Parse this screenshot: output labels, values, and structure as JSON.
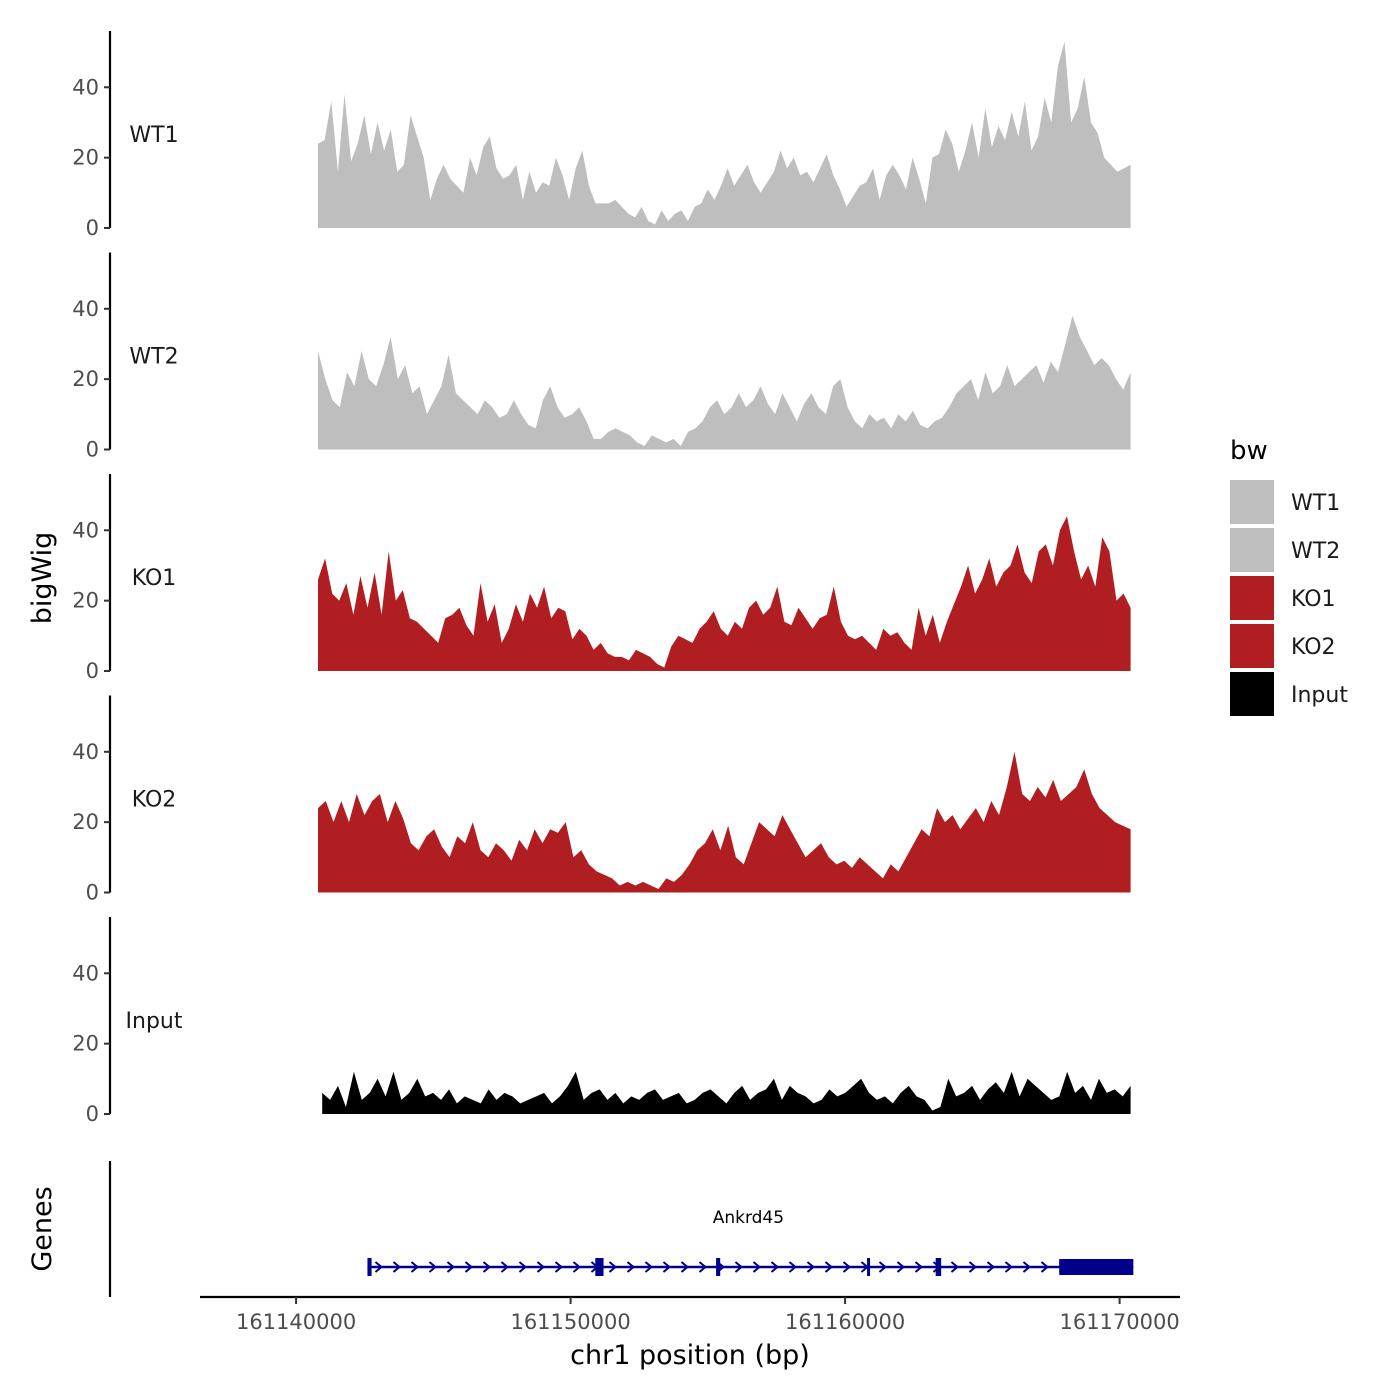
{
  "chart_data": {
    "type": "area",
    "x_axis": {
      "title": "chr1 position (bp)",
      "range": [
        161136500,
        161172200
      ],
      "ticks": [
        161140000,
        161150000,
        161160000,
        161170000
      ],
      "tick_labels": [
        "161140000",
        "161150000",
        "161160000",
        "161170000"
      ]
    },
    "y_axis": {
      "title": "bigWig",
      "range": [
        0,
        56
      ],
      "ticks": [
        0,
        20,
        40
      ],
      "tick_labels": [
        "0",
        "20",
        "40"
      ]
    },
    "tracks": [
      {
        "name": "WT1",
        "color": "#bebebe",
        "x_start": 161140800,
        "x_end": 161170400,
        "values": [
          24,
          25,
          36,
          16,
          38,
          19,
          24,
          32,
          21,
          30,
          22,
          28,
          16,
          18,
          32,
          26,
          20,
          8,
          14,
          18,
          14,
          12,
          10,
          20,
          15,
          23,
          26,
          17,
          14,
          15,
          18,
          8,
          16,
          10,
          13,
          12,
          20,
          15,
          8,
          17,
          22,
          12,
          7,
          7,
          7,
          8,
          6,
          4,
          3,
          6,
          2,
          1,
          5,
          2,
          4,
          5,
          2,
          6,
          7,
          11,
          8,
          12,
          17,
          12,
          15,
          18,
          13,
          10,
          13,
          16,
          22,
          17,
          20,
          15,
          16,
          13,
          17,
          21,
          15,
          11,
          6,
          9,
          12,
          13,
          17,
          8,
          15,
          18,
          15,
          11,
          20,
          14,
          7,
          20,
          21,
          28,
          24,
          16,
          22,
          30,
          20,
          34,
          23,
          29,
          25,
          33,
          26,
          36,
          22,
          26,
          37,
          30,
          46,
          53,
          30,
          34,
          43,
          30,
          27,
          20,
          18,
          16,
          17,
          18
        ]
      },
      {
        "name": "WT2",
        "color": "#bebebe",
        "x_start": 161140800,
        "x_end": 161170400,
        "values": [
          28,
          20,
          14,
          12,
          22,
          18,
          28,
          20,
          18,
          24,
          32,
          20,
          24,
          16,
          18,
          10,
          14,
          18,
          27,
          16,
          14,
          12,
          10,
          14,
          12,
          9,
          10,
          14,
          10,
          7,
          6,
          14,
          18,
          12,
          9,
          10,
          12,
          8,
          3,
          3,
          5,
          6,
          5,
          4,
          2,
          1,
          4,
          3,
          2,
          3,
          1,
          5,
          6,
          8,
          12,
          14,
          10,
          12,
          16,
          12,
          14,
          18,
          13,
          10,
          16,
          12,
          8,
          13,
          16,
          12,
          10,
          18,
          20,
          12,
          8,
          6,
          10,
          8,
          9,
          6,
          10,
          8,
          11,
          7,
          6,
          8,
          9,
          12,
          16,
          18,
          20,
          14,
          22,
          16,
          18,
          24,
          18,
          20,
          22,
          24,
          19,
          25,
          22,
          30,
          38,
          32,
          28,
          24,
          26,
          24,
          20,
          17,
          22
        ]
      },
      {
        "name": "KO1",
        "color": "#b11e21",
        "x_start": 161140800,
        "x_end": 161170400,
        "values": [
          26,
          32,
          22,
          20,
          25,
          16,
          27,
          18,
          28,
          16,
          34,
          20,
          23,
          15,
          14,
          12,
          10,
          8,
          15,
          16,
          18,
          13,
          10,
          25,
          14,
          19,
          8,
          12,
          19,
          14,
          22,
          18,
          24,
          15,
          18,
          17,
          9,
          12,
          10,
          6,
          8,
          5,
          4,
          4,
          3,
          6,
          5,
          4,
          2,
          1,
          7,
          10,
          9,
          8,
          12,
          14,
          17,
          12,
          10,
          14,
          12,
          18,
          20,
          16,
          18,
          24,
          14,
          13,
          18,
          15,
          12,
          15,
          16,
          24,
          14,
          10,
          9,
          10,
          8,
          6,
          12,
          10,
          11,
          8,
          6,
          18,
          10,
          16,
          8,
          14,
          19,
          24,
          30,
          22,
          26,
          32,
          24,
          28,
          30,
          36,
          28,
          25,
          34,
          36,
          30,
          40,
          44,
          34,
          26,
          30,
          24,
          38,
          34,
          20,
          22,
          18
        ]
      },
      {
        "name": "KO2",
        "color": "#b11e21",
        "x_start": 161140800,
        "x_end": 161170400,
        "values": [
          24,
          26,
          20,
          26,
          20,
          28,
          22,
          26,
          28,
          20,
          26,
          21,
          14,
          12,
          16,
          18,
          13,
          10,
          16,
          14,
          20,
          12,
          10,
          14,
          12,
          9,
          15,
          12,
          18,
          14,
          18,
          17,
          20,
          10,
          12,
          8,
          6,
          5,
          4,
          2,
          3,
          2,
          3,
          2,
          1,
          4,
          3,
          5,
          8,
          12,
          14,
          18,
          12,
          19,
          10,
          8,
          14,
          20,
          18,
          16,
          22,
          18,
          14,
          10,
          12,
          14,
          10,
          8,
          9,
          7,
          10,
          8,
          6,
          4,
          8,
          6,
          10,
          14,
          18,
          16,
          24,
          20,
          22,
          18,
          21,
          24,
          20,
          26,
          22,
          30,
          40,
          28,
          26,
          30,
          27,
          32,
          26,
          28,
          30,
          35,
          28,
          24,
          22,
          20,
          19,
          18
        ]
      },
      {
        "name": "Input",
        "color": "#000000",
        "x_start": 161140950,
        "x_end": 161170400,
        "values": [
          6,
          4,
          8,
          2,
          12,
          4,
          6,
          10,
          5,
          12,
          4,
          6,
          10,
          5,
          6,
          4,
          7,
          3,
          5,
          4,
          3,
          7,
          4,
          6,
          5,
          3,
          4,
          5,
          6,
          3,
          5,
          8,
          12,
          4,
          6,
          7,
          4,
          6,
          3,
          5,
          4,
          6,
          7,
          4,
          5,
          6,
          3,
          4,
          6,
          7,
          5,
          3,
          6,
          8,
          4,
          6,
          7,
          10,
          4,
          8,
          6,
          5,
          3,
          4,
          7,
          5,
          6,
          8,
          10,
          6,
          4,
          5,
          3,
          6,
          8,
          5,
          4,
          1,
          2,
          10,
          5,
          6,
          8,
          4,
          7,
          9,
          6,
          12,
          5,
          10,
          8,
          6,
          4,
          5,
          12,
          6,
          8,
          4,
          10,
          6,
          7,
          5,
          8
        ]
      }
    ],
    "legend": {
      "title": "bw",
      "position": "right",
      "entries": [
        {
          "label": "WT1",
          "color": "#bebebe"
        },
        {
          "label": "WT2",
          "color": "#bebebe"
        },
        {
          "label": "KO1",
          "color": "#b11e21"
        },
        {
          "label": "KO2",
          "color": "#b11e21"
        },
        {
          "label": "Input",
          "color": "#000000"
        }
      ]
    },
    "genes": {
      "title": "Genes",
      "items": [
        {
          "name": "Ankrd45",
          "strand": "+",
          "color": "#00008b",
          "start": 161142600,
          "end": 161170500,
          "exons": [
            {
              "start": 161142600,
              "end": 161142750
            },
            {
              "start": 161150900,
              "end": 161151200
            },
            {
              "start": 161155300,
              "end": 161155450
            },
            {
              "start": 161160800,
              "end": 161160900
            },
            {
              "start": 161163300,
              "end": 161163500
            },
            {
              "start": 161167800,
              "end": 161170500
            }
          ]
        }
      ]
    }
  }
}
